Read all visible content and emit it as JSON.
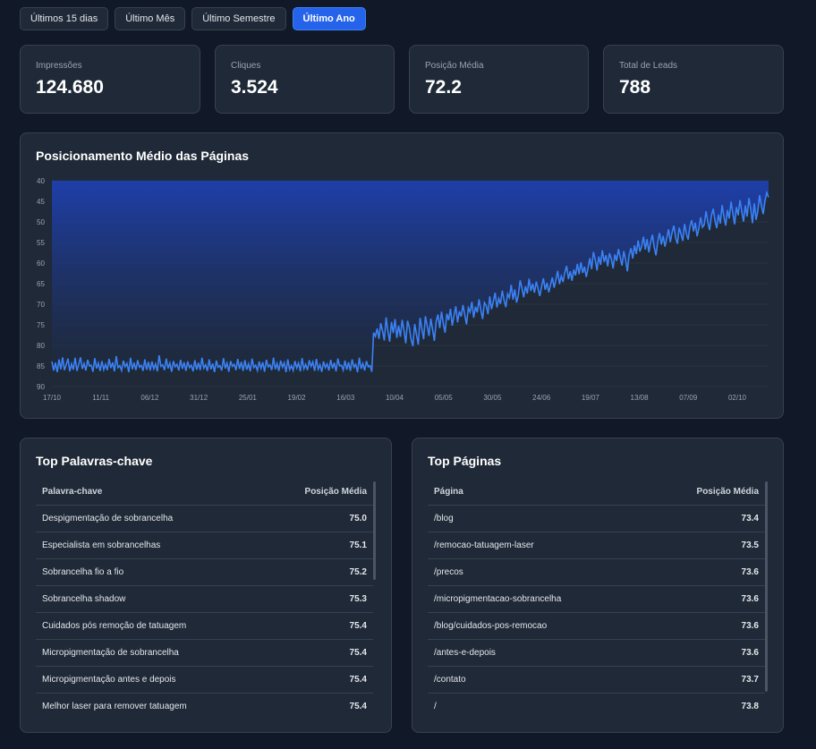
{
  "filters": [
    {
      "label": "Últimos 15 dias",
      "active": false
    },
    {
      "label": "Último Mês",
      "active": false
    },
    {
      "label": "Último Semestre",
      "active": false
    },
    {
      "label": "Último Ano",
      "active": true
    }
  ],
  "kpis": [
    {
      "label": "Impressões",
      "value": "124.680"
    },
    {
      "label": "Cliques",
      "value": "3.524"
    },
    {
      "label": "Posição Média",
      "value": "72.2"
    },
    {
      "label": "Total de Leads",
      "value": "788"
    }
  ],
  "chart": {
    "title": "Posicionamento Médio das Páginas"
  },
  "chart_data": {
    "type": "area",
    "y_inverted": true,
    "ylim": [
      40,
      90
    ],
    "yticks": [
      40,
      45,
      50,
      55,
      60,
      65,
      70,
      75,
      80,
      85,
      90
    ],
    "x_ticks": [
      "17/10",
      "11/11",
      "06/12",
      "31/12",
      "25/01",
      "19/02",
      "16/03",
      "10/04",
      "05/05",
      "30/05",
      "24/06",
      "19/07",
      "13/08",
      "07/09",
      "02/10"
    ],
    "series_colors": {
      "line": "#3b82f6",
      "fill_top": "#1e40af",
      "fill_bottom": "#1f2937"
    },
    "values": [
      83.9,
      86.1,
      84.2,
      86.5,
      83.4,
      85.8,
      82.9,
      86.0,
      84.7,
      83.2,
      86.3,
      84.5,
      85.9,
      83.0,
      86.2,
      84.6,
      82.9,
      85.7,
      84.4,
      86.1,
      83.5,
      85.0,
      84.8,
      86.4,
      83.1,
      85.6,
      84.3,
      86.2,
      83.8,
      85.9,
      84.6,
      86.0,
      83.3,
      85.5,
      84.1,
      86.3,
      82.6,
      85.4,
      84.9,
      86.1,
      83.7,
      85.2,
      84.4,
      86.5,
      83.0,
      85.8,
      84.2,
      86.0,
      83.6,
      85.3,
      84.8,
      86.2,
      83.4,
      85.9,
      84.0,
      86.1,
      83.9,
      85.7,
      84.5,
      86.3,
      82.4,
      85.1,
      84.7,
      86.0,
      83.2,
      85.6,
      84.3,
      86.4,
      83.8,
      85.2,
      84.6,
      86.1,
      83.5,
      85.7,
      84.1,
      86.2,
      83.9,
      85.4,
      84.8,
      86.3,
      83.6,
      85.9,
      84.2,
      86.0,
      83.0,
      85.5,
      84.7,
      86.2,
      83.4,
      85.8,
      84.4,
      86.5,
      83.7,
      85.3,
      84.9,
      86.1,
      83.1,
      85.6,
      84.3,
      86.4,
      83.8,
      85.1,
      84.6,
      86.0,
      83.3,
      85.7,
      84.0,
      86.2,
      83.6,
      85.9,
      84.5,
      86.3,
      83.2,
      85.4,
      84.8,
      86.1,
      83.9,
      85.6,
      84.1,
      86.4,
      83.5,
      85.2,
      84.7,
      86.0,
      83.0,
      85.8,
      84.4,
      86.2,
      83.7,
      85.3,
      84.2,
      86.5,
      83.4,
      85.9,
      84.9,
      86.1,
      83.8,
      85.5,
      84.3,
      86.3,
      83.1,
      85.7,
      84.6,
      86.0,
      83.6,
      85.1,
      84.0,
      86.2,
      83.3,
      85.8,
      84.7,
      86.4,
      83.9,
      85.4,
      84.5,
      86.1,
      83.5,
      85.6,
      84.2,
      86.3,
      83.2,
      85.0,
      84.8,
      86.0,
      83.7,
      85.9,
      84.1,
      86.2,
      83.4,
      85.3,
      84.6,
      86.5,
      83.0,
      85.7,
      84.4,
      86.1,
      83.8,
      85.2,
      84.9,
      86.4,
      76.9,
      77.8,
      75.9,
      78.4,
      74.6,
      76.5,
      78.8,
      73.2,
      76.6,
      79.1,
      74.3,
      77.0,
      73.6,
      78.2,
      75.2,
      77.9,
      73.8,
      76.4,
      79.5,
      74.0,
      75.7,
      78.6,
      80.2,
      74.8,
      77.4,
      79.8,
      73.3,
      76.0,
      78.5,
      72.9,
      75.3,
      77.7,
      73.5,
      76.1,
      78.9,
      74.2,
      72.5,
      75.8,
      71.8,
      74.7,
      76.9,
      72.3,
      73.9,
      71.1,
      75.2,
      72.8,
      70.5,
      74.4,
      71.7,
      73.0,
      70.2,
      72.6,
      74.9,
      70.9,
      71.9,
      69.4,
      73.3,
      70.6,
      72.0,
      68.8,
      71.4,
      73.6,
      69.6,
      70.3,
      72.4,
      68.1,
      71.2,
      69.3,
      67.2,
      70.8,
      68.6,
      69.9,
      66.7,
      69.1,
      70.7,
      67.5,
      68.4,
      65.3,
      68.9,
      66.4,
      69.6,
      67.8,
      64.2,
      66.1,
      68.3,
      65.6,
      67.4,
      63.8,
      66.8,
      65.0,
      67.2,
      64.5,
      66.3,
      68.0,
      65.7,
      63.7,
      66.5,
      64.8,
      67.1,
      65.3,
      63.5,
      66.0,
      64.1,
      61.9,
      65.1,
      63.2,
      64.6,
      62.3,
      60.7,
      63.9,
      62.0,
      64.3,
      61.6,
      63.0,
      60.2,
      62.7,
      59.8,
      62.4,
      60.9,
      63.4,
      61.2,
      58.8,
      61.5,
      57.3,
      59.2,
      61.8,
      58.4,
      60.4,
      56.9,
      59.7,
      58.1,
      60.8,
      57.6,
      59.0,
      61.3,
      57.9,
      59.5,
      56.6,
      58.7,
      60.6,
      57.1,
      59.3,
      62.0,
      58.0,
      56.4,
      58.9,
      55.7,
      57.8,
      54.5,
      57.2,
      55.9,
      53.6,
      56.7,
      54.2,
      57.4,
      55.0,
      53.1,
      56.2,
      58.1,
      54.8,
      52.7,
      55.5,
      53.4,
      56.0,
      54.1,
      51.8,
      54.9,
      52.6,
      50.9,
      53.9,
      55.3,
      51.4,
      53.0,
      54.6,
      50.5,
      52.9,
      54.3,
      51.1,
      49.6,
      52.3,
      50.2,
      53.5,
      51.6,
      48.9,
      51.3,
      50.7,
      47.4,
      50.1,
      52.0,
      48.6,
      46.8,
      49.7,
      51.5,
      48.2,
      50.4,
      45.9,
      48.8,
      50.9,
      47.1,
      49.2,
      45.1,
      48.0,
      50.6,
      46.4,
      48.4,
      44.7,
      47.6,
      49.9,
      46.0,
      48.7,
      44.2,
      46.9,
      50.3,
      45.5,
      49.5,
      47.3,
      43.5,
      46.2,
      48.1,
      44.9,
      42.9,
      44.0
    ]
  },
  "keywords": {
    "title": "Top Palavras-chave",
    "headers": [
      "Palavra-chave",
      "Posição Média"
    ],
    "rows": [
      [
        "Despigmentação de sobrancelha",
        "75.0"
      ],
      [
        "Especialista em sobrancelhas",
        "75.1"
      ],
      [
        "Sobrancelha fio a fio",
        "75.2"
      ],
      [
        "Sobrancelha shadow",
        "75.3"
      ],
      [
        "Cuidados pós remoção de tatuagem",
        "75.4"
      ],
      [
        "Micropigmentação de sobrancelha",
        "75.4"
      ],
      [
        "Micropigmentação antes e depois",
        "75.4"
      ],
      [
        "Melhor laser para remover tatuagem",
        "75.4"
      ]
    ]
  },
  "pages": {
    "title": "Top Páginas",
    "headers": [
      "Página",
      "Posição Média"
    ],
    "rows": [
      [
        "/blog",
        "73.4"
      ],
      [
        "/remocao-tatuagem-laser",
        "73.5"
      ],
      [
        "/precos",
        "73.6"
      ],
      [
        "/micropigmentacao-sobrancelha",
        "73.6"
      ],
      [
        "/blog/cuidados-pos-remocao",
        "73.6"
      ],
      [
        "/antes-e-depois",
        "73.6"
      ],
      [
        "/contato",
        "73.7"
      ],
      [
        "/",
        "73.8"
      ]
    ]
  }
}
